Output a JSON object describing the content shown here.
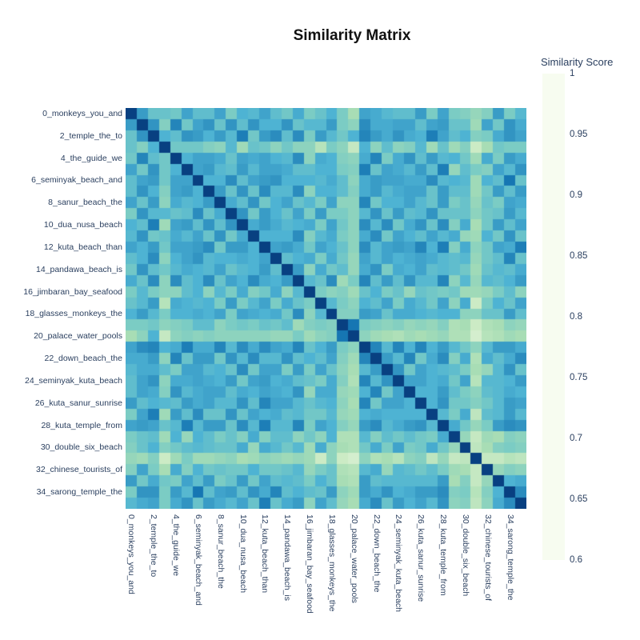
{
  "title": "Similarity Matrix",
  "colorbar": {
    "title": "Similarity Score",
    "tick_labels": [
      "1",
      "0.95",
      "0.9",
      "0.85",
      "0.8",
      "0.75",
      "0.7",
      "0.65",
      "0.6"
    ]
  },
  "chart_data": {
    "type": "heatmap",
    "title": "Similarity Matrix",
    "legend_title": "Similarity Score",
    "zmin": 0.6,
    "zmax": 1.0,
    "grid": false,
    "n": 36,
    "tick_every": 2,
    "tick_labels": [
      "0_monkeys_you_and",
      "2_temple_the_to",
      "4_the_guide_we",
      "6_seminyak_beach_and",
      "8_sanur_beach_the",
      "10_dua_nusa_beach",
      "12_kuta_beach_than",
      "14_pandawa_beach_is",
      "16_jimbaran_bay_seafood",
      "18_glasses_monkeys_the",
      "20_palace_water_pools",
      "22_down_beach_the",
      "24_seminyak_kuta_beach",
      "26_kuta_sanur_sunrise",
      "28_kuta_temple_from",
      "30_double_six_beach",
      "32_chinese_tourists_of",
      "34_sarong_temple_the"
    ],
    "colorscale": [
      "#f7fcf0",
      "#e0f3db",
      "#ccebc5",
      "#a8ddb5",
      "#7bccc4",
      "#4eb3d3",
      "#2b8cbe",
      "#0868ac",
      "#084081"
    ],
    "matrix": [
      [
        1.0,
        0.88,
        0.82,
        0.82,
        0.81,
        0.87,
        0.83,
        0.83,
        0.87,
        0.8,
        0.85,
        0.84,
        0.87,
        0.83,
        0.81,
        0.86,
        0.8,
        0.82,
        0.85,
        0.8,
        0.75,
        0.87,
        0.86,
        0.84,
        0.83,
        0.83,
        0.88,
        0.8,
        0.87,
        0.8,
        0.79,
        0.77,
        0.79,
        0.88,
        0.8,
        0.84
      ],
      [
        0.88,
        1.0,
        0.89,
        0.79,
        0.91,
        0.81,
        0.87,
        0.89,
        0.82,
        0.89,
        0.83,
        0.89,
        0.85,
        0.85,
        0.89,
        0.82,
        0.84,
        0.84,
        0.88,
        0.8,
        0.78,
        0.9,
        0.86,
        0.86,
        0.87,
        0.87,
        0.83,
        0.87,
        0.88,
        0.82,
        0.82,
        0.76,
        0.87,
        0.81,
        0.89,
        0.86
      ],
      [
        0.82,
        0.89,
        1.0,
        0.85,
        0.83,
        0.89,
        0.88,
        0.85,
        0.88,
        0.84,
        0.92,
        0.81,
        0.88,
        0.9,
        0.83,
        0.9,
        0.8,
        0.88,
        0.84,
        0.81,
        0.85,
        0.91,
        0.88,
        0.86,
        0.89,
        0.86,
        0.85,
        0.92,
        0.87,
        0.83,
        0.85,
        0.79,
        0.8,
        0.86,
        0.89,
        0.87
      ],
      [
        0.82,
        0.79,
        0.85,
        1.0,
        0.81,
        0.81,
        0.81,
        0.79,
        0.78,
        0.84,
        0.76,
        0.82,
        0.81,
        0.78,
        0.81,
        0.78,
        0.78,
        0.73,
        0.8,
        0.78,
        0.71,
        0.85,
        0.78,
        0.83,
        0.78,
        0.79,
        0.84,
        0.76,
        0.82,
        0.76,
        0.79,
        0.7,
        0.75,
        0.81,
        0.8,
        0.8
      ],
      [
        0.81,
        0.91,
        0.83,
        0.81,
        1.0,
        0.85,
        0.87,
        0.87,
        0.86,
        0.82,
        0.87,
        0.86,
        0.87,
        0.85,
        0.84,
        0.9,
        0.78,
        0.86,
        0.85,
        0.79,
        0.78,
        0.86,
        0.91,
        0.8,
        0.86,
        0.89,
        0.83,
        0.88,
        0.84,
        0.85,
        0.81,
        0.76,
        0.86,
        0.8,
        0.88,
        0.86
      ],
      [
        0.87,
        0.81,
        0.89,
        0.81,
        0.85,
        1.0,
        0.87,
        0.88,
        0.84,
        0.83,
        0.88,
        0.84,
        0.87,
        0.87,
        0.86,
        0.83,
        0.83,
        0.85,
        0.85,
        0.8,
        0.79,
        0.92,
        0.82,
        0.87,
        0.86,
        0.84,
        0.88,
        0.83,
        0.92,
        0.77,
        0.83,
        0.8,
        0.79,
        0.87,
        0.84,
        0.89
      ],
      [
        0.83,
        0.87,
        0.88,
        0.81,
        0.87,
        0.87,
        1.0,
        0.85,
        0.85,
        0.9,
        0.83,
        0.87,
        0.88,
        0.89,
        0.85,
        0.85,
        0.85,
        0.84,
        0.86,
        0.83,
        0.78,
        0.86,
        0.88,
        0.87,
        0.87,
        0.86,
        0.86,
        0.9,
        0.84,
        0.85,
        0.84,
        0.76,
        0.85,
        0.83,
        0.93,
        0.82
      ],
      [
        0.83,
        0.89,
        0.85,
        0.79,
        0.87,
        0.88,
        0.85,
        1.0,
        0.88,
        0.82,
        0.89,
        0.82,
        0.9,
        0.84,
        0.84,
        0.9,
        0.78,
        0.85,
        0.85,
        0.83,
        0.79,
        0.86,
        0.88,
        0.84,
        0.86,
        0.87,
        0.87,
        0.82,
        0.88,
        0.83,
        0.83,
        0.76,
        0.81,
        0.88,
        0.83,
        0.88
      ],
      [
        0.87,
        0.82,
        0.88,
        0.78,
        0.86,
        0.84,
        0.85,
        0.88,
        1.0,
        0.86,
        0.83,
        0.89,
        0.81,
        0.85,
        0.87,
        0.82,
        0.84,
        0.8,
        0.87,
        0.78,
        0.78,
        0.91,
        0.81,
        0.85,
        0.85,
        0.87,
        0.84,
        0.82,
        0.88,
        0.8,
        0.82,
        0.77,
        0.82,
        0.8,
        0.87,
        0.86
      ],
      [
        0.8,
        0.89,
        0.84,
        0.84,
        0.82,
        0.83,
        0.9,
        0.82,
        0.86,
        1.0,
        0.89,
        0.81,
        0.88,
        0.85,
        0.82,
        0.87,
        0.8,
        0.88,
        0.8,
        0.8,
        0.78,
        0.84,
        0.89,
        0.82,
        0.88,
        0.83,
        0.84,
        0.89,
        0.82,
        0.82,
        0.82,
        0.78,
        0.81,
        0.82,
        0.88,
        0.84
      ],
      [
        0.85,
        0.83,
        0.92,
        0.76,
        0.87,
        0.88,
        0.83,
        0.89,
        0.83,
        0.89,
        1.0,
        0.86,
        0.88,
        0.86,
        0.84,
        0.85,
        0.86,
        0.8,
        0.87,
        0.81,
        0.78,
        0.9,
        0.84,
        0.9,
        0.81,
        0.86,
        0.89,
        0.82,
        0.9,
        0.79,
        0.86,
        0.75,
        0.81,
        0.88,
        0.83,
        0.87
      ],
      [
        0.84,
        0.89,
        0.81,
        0.82,
        0.86,
        0.84,
        0.87,
        0.82,
        0.89,
        0.81,
        0.86,
        1.0,
        0.85,
        0.85,
        0.85,
        0.9,
        0.79,
        0.84,
        0.86,
        0.8,
        0.78,
        0.86,
        0.9,
        0.81,
        0.87,
        0.85,
        0.83,
        0.87,
        0.84,
        0.86,
        0.77,
        0.76,
        0.85,
        0.81,
        0.89,
        0.82
      ],
      [
        0.87,
        0.85,
        0.88,
        0.81,
        0.87,
        0.87,
        0.88,
        0.9,
        0.81,
        0.88,
        0.88,
        0.85,
        1.0,
        0.87,
        0.88,
        0.86,
        0.81,
        0.87,
        0.85,
        0.82,
        0.78,
        0.9,
        0.84,
        0.87,
        0.88,
        0.87,
        0.91,
        0.85,
        0.92,
        0.79,
        0.86,
        0.78,
        0.81,
        0.87,
        0.86,
        0.92
      ],
      [
        0.83,
        0.85,
        0.9,
        0.78,
        0.85,
        0.87,
        0.89,
        0.84,
        0.85,
        0.85,
        0.86,
        0.85,
        0.87,
        1.0,
        0.83,
        0.85,
        0.86,
        0.8,
        0.86,
        0.81,
        0.77,
        0.87,
        0.84,
        0.87,
        0.85,
        0.86,
        0.87,
        0.86,
        0.84,
        0.83,
        0.84,
        0.77,
        0.81,
        0.83,
        0.91,
        0.82
      ],
      [
        0.81,
        0.89,
        0.83,
        0.81,
        0.84,
        0.86,
        0.85,
        0.84,
        0.87,
        0.82,
        0.84,
        0.85,
        0.88,
        0.83,
        1.0,
        0.88,
        0.78,
        0.86,
        0.81,
        0.83,
        0.77,
        0.86,
        0.89,
        0.8,
        0.86,
        0.85,
        0.87,
        0.83,
        0.84,
        0.83,
        0.81,
        0.76,
        0.82,
        0.84,
        0.83,
        0.86
      ],
      [
        0.86,
        0.82,
        0.9,
        0.78,
        0.9,
        0.83,
        0.85,
        0.9,
        0.82,
        0.87,
        0.85,
        0.9,
        0.86,
        0.85,
        0.88,
        1.0,
        0.84,
        0.82,
        0.9,
        0.76,
        0.8,
        0.91,
        0.83,
        0.88,
        0.83,
        0.89,
        0.84,
        0.84,
        0.91,
        0.78,
        0.84,
        0.77,
        0.84,
        0.83,
        0.85,
        0.88
      ],
      [
        0.8,
        0.84,
        0.8,
        0.78,
        0.78,
        0.83,
        0.85,
        0.78,
        0.84,
        0.8,
        0.86,
        0.79,
        0.81,
        0.86,
        0.78,
        0.84,
        1.0,
        0.8,
        0.78,
        0.79,
        0.76,
        0.82,
        0.85,
        0.8,
        0.82,
        0.77,
        0.82,
        0.81,
        0.8,
        0.81,
        0.76,
        0.76,
        0.77,
        0.8,
        0.83,
        0.78
      ],
      [
        0.82,
        0.84,
        0.88,
        0.73,
        0.86,
        0.85,
        0.84,
        0.85,
        0.8,
        0.88,
        0.8,
        0.84,
        0.87,
        0.8,
        0.86,
        0.82,
        0.8,
        1.0,
        0.84,
        0.8,
        0.78,
        0.85,
        0.83,
        0.87,
        0.8,
        0.86,
        0.84,
        0.81,
        0.87,
        0.78,
        0.86,
        0.7,
        0.8,
        0.85,
        0.82,
        0.87
      ],
      [
        0.85,
        0.88,
        0.84,
        0.8,
        0.85,
        0.85,
        0.86,
        0.85,
        0.87,
        0.8,
        0.87,
        0.86,
        0.85,
        0.86,
        0.81,
        0.9,
        0.78,
        0.84,
        1.0,
        0.79,
        0.79,
        0.88,
        0.87,
        0.82,
        0.86,
        0.86,
        0.85,
        0.84,
        0.85,
        0.85,
        0.78,
        0.78,
        0.82,
        0.82,
        0.88,
        0.83
      ],
      [
        0.8,
        0.8,
        0.81,
        0.78,
        0.79,
        0.8,
        0.83,
        0.83,
        0.78,
        0.8,
        0.81,
        0.8,
        0.82,
        0.81,
        0.83,
        0.76,
        0.79,
        0.8,
        0.79,
        1.0,
        0.93,
        0.8,
        0.79,
        0.78,
        0.79,
        0.77,
        0.78,
        0.77,
        0.79,
        0.74,
        0.75,
        0.7,
        0.74,
        0.75,
        0.78,
        0.77
      ],
      [
        0.75,
        0.78,
        0.85,
        0.71,
        0.78,
        0.79,
        0.78,
        0.79,
        0.78,
        0.78,
        0.78,
        0.78,
        0.78,
        0.77,
        0.77,
        0.8,
        0.76,
        0.78,
        0.79,
        0.93,
        1.0,
        0.78,
        0.76,
        0.75,
        0.74,
        0.76,
        0.75,
        0.76,
        0.77,
        0.74,
        0.74,
        0.68,
        0.73,
        0.74,
        0.76,
        0.75
      ],
      [
        0.87,
        0.9,
        0.91,
        0.85,
        0.86,
        0.92,
        0.86,
        0.86,
        0.91,
        0.84,
        0.9,
        0.86,
        0.9,
        0.87,
        0.86,
        0.91,
        0.82,
        0.85,
        0.88,
        0.8,
        0.78,
        1.0,
        0.91,
        0.84,
        0.91,
        0.85,
        0.91,
        0.85,
        0.88,
        0.84,
        0.81,
        0.78,
        0.84,
        0.88,
        0.88,
        0.86
      ],
      [
        0.86,
        0.86,
        0.88,
        0.78,
        0.91,
        0.82,
        0.88,
        0.88,
        0.81,
        0.89,
        0.84,
        0.9,
        0.84,
        0.84,
        0.89,
        0.83,
        0.85,
        0.83,
        0.87,
        0.79,
        0.76,
        0.91,
        1.0,
        0.88,
        0.84,
        0.91,
        0.81,
        0.86,
        0.9,
        0.79,
        0.86,
        0.74,
        0.86,
        0.83,
        0.86,
        0.9
      ],
      [
        0.84,
        0.86,
        0.86,
        0.83,
        0.8,
        0.87,
        0.87,
        0.84,
        0.85,
        0.82,
        0.9,
        0.81,
        0.87,
        0.87,
        0.8,
        0.88,
        0.8,
        0.87,
        0.82,
        0.78,
        0.75,
        0.84,
        0.88,
        1.0,
        0.89,
        0.81,
        0.87,
        0.85,
        0.84,
        0.83,
        0.8,
        0.75,
        0.77,
        0.84,
        0.89,
        0.82
      ],
      [
        0.83,
        0.87,
        0.89,
        0.78,
        0.86,
        0.86,
        0.87,
        0.86,
        0.85,
        0.88,
        0.81,
        0.87,
        0.88,
        0.85,
        0.86,
        0.83,
        0.82,
        0.8,
        0.86,
        0.79,
        0.74,
        0.91,
        0.84,
        0.89,
        1.0,
        0.87,
        0.87,
        0.85,
        0.86,
        0.81,
        0.87,
        0.73,
        0.84,
        0.84,
        0.85,
        0.88
      ],
      [
        0.83,
        0.87,
        0.86,
        0.79,
        0.89,
        0.84,
        0.86,
        0.87,
        0.87,
        0.83,
        0.86,
        0.85,
        0.87,
        0.86,
        0.85,
        0.89,
        0.77,
        0.86,
        0.86,
        0.77,
        0.76,
        0.85,
        0.91,
        0.81,
        0.87,
        1.0,
        0.85,
        0.85,
        0.88,
        0.83,
        0.8,
        0.78,
        0.83,
        0.84,
        0.86,
        0.85
      ],
      [
        0.88,
        0.83,
        0.85,
        0.84,
        0.83,
        0.88,
        0.86,
        0.87,
        0.84,
        0.84,
        0.89,
        0.83,
        0.91,
        0.87,
        0.87,
        0.84,
        0.82,
        0.84,
        0.85,
        0.78,
        0.75,
        0.91,
        0.81,
        0.87,
        0.87,
        0.85,
        1.0,
        0.85,
        0.89,
        0.81,
        0.81,
        0.79,
        0.81,
        0.84,
        0.88,
        0.87
      ],
      [
        0.8,
        0.87,
        0.92,
        0.76,
        0.88,
        0.83,
        0.9,
        0.82,
        0.82,
        0.89,
        0.82,
        0.87,
        0.85,
        0.86,
        0.83,
        0.84,
        0.81,
        0.81,
        0.84,
        0.77,
        0.76,
        0.85,
        0.86,
        0.85,
        0.85,
        0.85,
        0.85,
        1.0,
        0.84,
        0.8,
        0.86,
        0.72,
        0.83,
        0.84,
        0.88,
        0.84
      ],
      [
        0.87,
        0.88,
        0.87,
        0.82,
        0.84,
        0.92,
        0.84,
        0.88,
        0.88,
        0.82,
        0.9,
        0.84,
        0.92,
        0.84,
        0.84,
        0.91,
        0.8,
        0.87,
        0.85,
        0.79,
        0.77,
        0.88,
        0.9,
        0.84,
        0.86,
        0.88,
        0.89,
        0.84,
        1.0,
        0.86,
        0.81,
        0.77,
        0.8,
        0.88,
        0.9,
        0.89
      ],
      [
        0.8,
        0.82,
        0.83,
        0.76,
        0.85,
        0.77,
        0.85,
        0.83,
        0.8,
        0.82,
        0.79,
        0.86,
        0.79,
        0.83,
        0.83,
        0.78,
        0.81,
        0.78,
        0.85,
        0.74,
        0.74,
        0.84,
        0.79,
        0.83,
        0.81,
        0.83,
        0.81,
        0.8,
        0.86,
        1.0,
        0.77,
        0.71,
        0.76,
        0.75,
        0.79,
        0.78
      ],
      [
        0.79,
        0.82,
        0.85,
        0.79,
        0.81,
        0.83,
        0.84,
        0.83,
        0.82,
        0.82,
        0.86,
        0.77,
        0.86,
        0.84,
        0.81,
        0.84,
        0.76,
        0.86,
        0.78,
        0.75,
        0.74,
        0.81,
        0.86,
        0.8,
        0.87,
        0.8,
        0.81,
        0.86,
        0.81,
        0.77,
        1.0,
        0.72,
        0.75,
        0.79,
        0.8,
        0.79
      ],
      [
        0.77,
        0.76,
        0.79,
        0.7,
        0.76,
        0.8,
        0.76,
        0.76,
        0.77,
        0.78,
        0.75,
        0.76,
        0.78,
        0.77,
        0.76,
        0.77,
        0.76,
        0.7,
        0.78,
        0.7,
        0.68,
        0.78,
        0.74,
        0.75,
        0.73,
        0.78,
        0.79,
        0.72,
        0.77,
        0.71,
        0.72,
        1.0,
        0.71,
        0.71,
        0.73,
        0.72
      ],
      [
        0.79,
        0.87,
        0.8,
        0.75,
        0.86,
        0.79,
        0.85,
        0.81,
        0.82,
        0.81,
        0.81,
        0.85,
        0.81,
        0.81,
        0.82,
        0.84,
        0.77,
        0.8,
        0.82,
        0.74,
        0.73,
        0.84,
        0.86,
        0.77,
        0.84,
        0.83,
        0.81,
        0.83,
        0.8,
        0.76,
        0.75,
        0.71,
        1.0,
        0.77,
        0.79,
        0.78
      ],
      [
        0.88,
        0.81,
        0.86,
        0.81,
        0.8,
        0.87,
        0.83,
        0.88,
        0.8,
        0.82,
        0.88,
        0.81,
        0.87,
        0.83,
        0.84,
        0.83,
        0.8,
        0.85,
        0.82,
        0.75,
        0.74,
        0.88,
        0.83,
        0.84,
        0.84,
        0.84,
        0.84,
        0.84,
        0.88,
        0.75,
        0.79,
        0.71,
        0.77,
        1.0,
        0.85,
        0.86
      ],
      [
        0.8,
        0.89,
        0.89,
        0.8,
        0.88,
        0.84,
        0.93,
        0.83,
        0.87,
        0.88,
        0.83,
        0.89,
        0.86,
        0.91,
        0.83,
        0.85,
        0.83,
        0.82,
        0.88,
        0.78,
        0.76,
        0.88,
        0.86,
        0.89,
        0.85,
        0.86,
        0.88,
        0.88,
        0.9,
        0.79,
        0.8,
        0.73,
        0.79,
        0.85,
        1.0,
        0.9
      ],
      [
        0.84,
        0.86,
        0.87,
        0.8,
        0.86,
        0.89,
        0.82,
        0.88,
        0.86,
        0.84,
        0.87,
        0.82,
        0.92,
        0.82,
        0.86,
        0.88,
        0.78,
        0.87,
        0.83,
        0.77,
        0.75,
        0.86,
        0.9,
        0.82,
        0.88,
        0.85,
        0.87,
        0.84,
        0.89,
        0.78,
        0.79,
        0.72,
        0.78,
        0.86,
        0.9,
        1.0
      ]
    ]
  }
}
